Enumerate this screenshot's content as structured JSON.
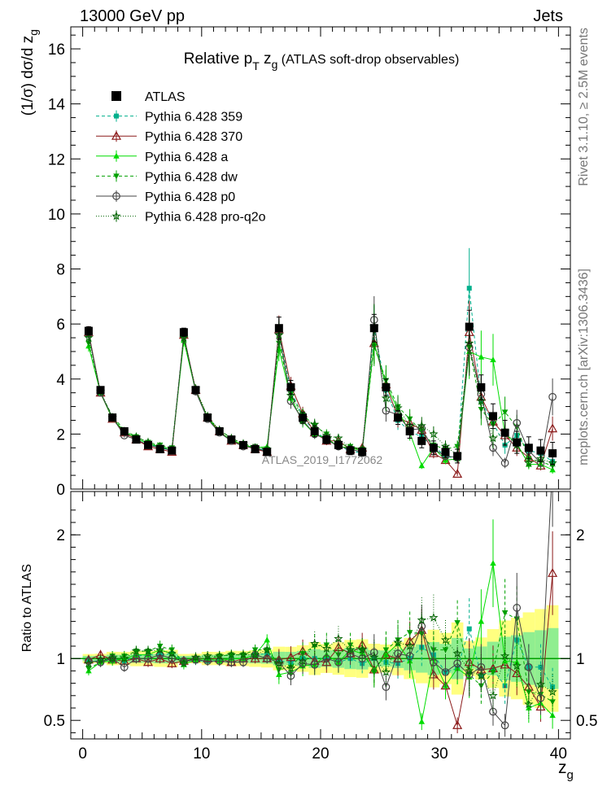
{
  "header": {
    "left": "13000 GeV pp",
    "right": "Jets"
  },
  "side": {
    "top": "Rivet 3.1.10, ≥ 2.5M events",
    "bottom": "mcplots.cern.ch [arXiv:1306.3436]"
  },
  "chart_data": {
    "type": "scatter",
    "title_parts": [
      "Relative p",
      "T",
      " z",
      "g",
      " (ATLAS soft-drop observables)"
    ],
    "ylabel_parts": [
      "(1/σ) dσ/d z",
      "g"
    ],
    "ratio_ylabel": "Ratio to ATLAS",
    "xlabel_parts": [
      "z",
      "g"
    ],
    "watermark": "ATLAS_2019_I1772062",
    "xlim": [
      -1,
      41
    ],
    "ylim_main": [
      0,
      16.8
    ],
    "ylim_ratio": [
      0.35,
      2.35
    ],
    "x_ticks": [
      0,
      10,
      20,
      30,
      40
    ],
    "y_ticks_main": [
      0,
      2,
      4,
      6,
      8,
      10,
      12,
      14,
      16
    ],
    "y_ticks_ratio": [
      0.5,
      1,
      2
    ],
    "legend_position": "top-left",
    "colors": {
      "band_stat": "#90ee90",
      "band_total": "#ffff80",
      "c359": "#00b08c",
      "c370": "#8b1a1a",
      "ca": "#00dd00",
      "cdw": "#00a000",
      "cp0": "#444444",
      "cq2o": "#006400"
    },
    "x": [
      0.5,
      1.5,
      2.5,
      3.5,
      4.5,
      5.5,
      6.5,
      7.5,
      8.5,
      9.5,
      10.5,
      11.5,
      12.5,
      13.5,
      14.5,
      15.5,
      16.5,
      17.5,
      18.5,
      19.5,
      20.5,
      21.5,
      22.5,
      23.5,
      24.5,
      25.5,
      26.5,
      27.5,
      28.5,
      29.5,
      30.5,
      31.5,
      32.5,
      33.5,
      34.5,
      35.5,
      36.5,
      37.5,
      38.5,
      39.5
    ],
    "series": [
      {
        "name": "ATLAS",
        "marker": "square-filled",
        "color": "#000000",
        "values": [
          5.75,
          3.6,
          2.6,
          2.1,
          1.8,
          1.6,
          1.45,
          1.4,
          5.7,
          3.6,
          2.6,
          2.1,
          1.8,
          1.6,
          1.45,
          1.35,
          5.85,
          3.7,
          2.6,
          2.1,
          1.8,
          1.6,
          1.4,
          1.35,
          5.85,
          3.7,
          2.6,
          2.1,
          1.75,
          1.5,
          1.35,
          1.2,
          5.9,
          3.7,
          2.65,
          2.05,
          1.7,
          1.5,
          1.4,
          1.3
        ],
        "errors": [
          0.15,
          0.1,
          0.1,
          0.08,
          0.08,
          0.07,
          0.07,
          0.07,
          0.15,
          0.1,
          0.1,
          0.08,
          0.08,
          0.07,
          0.07,
          0.07,
          0.4,
          0.25,
          0.2,
          0.2,
          0.15,
          0.15,
          0.15,
          0.15,
          0.5,
          0.3,
          0.25,
          0.25,
          0.25,
          0.25,
          0.2,
          0.25,
          0.6,
          0.45,
          0.45,
          0.45,
          0.4,
          0.4,
          0.4,
          0.4
        ]
      },
      {
        "name": "Pythia 6.428 359",
        "marker": "square-small",
        "color": "#00b08c",
        "dash": "4,3",
        "values": [
          5.6,
          3.5,
          2.6,
          2.05,
          1.85,
          1.65,
          1.5,
          1.45,
          5.6,
          3.55,
          2.55,
          2.05,
          1.8,
          1.6,
          1.5,
          1.4,
          5.7,
          3.6,
          2.6,
          2.1,
          1.8,
          1.55,
          1.4,
          1.3,
          5.85,
          3.6,
          2.5,
          2.1,
          1.9,
          1.55,
          1.2,
          1.1,
          7.3,
          3.2,
          2.4,
          1.6,
          1.95,
          1.4,
          1.3,
          1.0
        ],
        "ratio": [
          0.98,
          0.98,
          1.0,
          0.98,
          1.02,
          1.03,
          1.03,
          1.04,
          0.98,
          0.98,
          0.98,
          0.98,
          1.0,
          1.0,
          1.03,
          1.04,
          0.98,
          0.97,
          1.0,
          1.0,
          1.0,
          0.97,
          1.0,
          0.96,
          1.0,
          0.97,
          0.96,
          1.0,
          1.09,
          1.03,
          0.89,
          0.92,
          1.24,
          0.86,
          0.91,
          0.78,
          1.15,
          0.93,
          0.93,
          0.77
        ]
      },
      {
        "name": "Pythia 6.428 370",
        "marker": "triangle-up-open",
        "color": "#8b1a1a",
        "dash": "",
        "values": [
          5.7,
          3.5,
          2.55,
          2.05,
          1.8,
          1.55,
          1.45,
          1.35,
          5.6,
          3.6,
          2.6,
          2.1,
          1.75,
          1.6,
          1.45,
          1.35,
          5.8,
          3.75,
          2.75,
          2.05,
          1.75,
          1.75,
          1.45,
          1.5,
          5.3,
          3.8,
          2.6,
          2.4,
          2.15,
          1.3,
          1.05,
          0.55,
          5.7,
          3.35,
          2.45,
          1.95,
          1.5,
          1.15,
          0.85,
          2.2
        ],
        "ratio": [
          0.99,
          1.03,
          0.99,
          0.98,
          1.0,
          0.97,
          1.0,
          0.96,
          0.98,
          1.0,
          1.0,
          1.0,
          0.97,
          1.0,
          1.0,
          1.0,
          0.99,
          1.01,
          1.06,
          0.98,
          0.97,
          1.09,
          1.04,
          1.11,
          0.91,
          1.03,
          1.0,
          1.14,
          1.23,
          0.87,
          0.78,
          0.46,
          0.97,
          0.91,
          0.92,
          0.95,
          0.88,
          0.77,
          0.61,
          1.69
        ]
      },
      {
        "name": "Pythia 6.428 a",
        "marker": "triangle-up-filled",
        "color": "#00dd00",
        "dash": "",
        "values": [
          5.2,
          3.5,
          2.55,
          2.1,
          1.85,
          1.65,
          1.55,
          1.45,
          5.4,
          3.55,
          2.6,
          2.05,
          1.8,
          1.6,
          1.5,
          1.55,
          5.1,
          3.3,
          2.45,
          2.0,
          1.85,
          1.55,
          1.5,
          1.4,
          5.3,
          3.8,
          2.9,
          2.05,
          0.85,
          1.5,
          1.05,
          1.1,
          5.0,
          4.8,
          4.7,
          2.0,
          1.65,
          0.9,
          0.9,
          0.7
        ],
        "ratio": [
          0.9,
          0.97,
          0.98,
          1.0,
          1.03,
          1.03,
          1.07,
          1.04,
          0.95,
          0.99,
          1.0,
          0.98,
          1.0,
          1.0,
          1.03,
          1.15,
          0.87,
          0.89,
          0.94,
          0.95,
          1.03,
          0.97,
          1.07,
          1.04,
          0.91,
          1.03,
          1.12,
          0.98,
          0.49,
          1.0,
          0.78,
          0.92,
          0.85,
          1.3,
          1.77,
          0.98,
          0.97,
          0.6,
          0.64,
          0.54
        ]
      },
      {
        "name": "Pythia 6.428 dw",
        "marker": "triangle-down-filled",
        "color": "#00a000",
        "dash": "4,3",
        "values": [
          5.3,
          3.5,
          2.65,
          2.15,
          1.9,
          1.7,
          1.6,
          1.5,
          5.5,
          3.6,
          2.6,
          2.15,
          1.85,
          1.65,
          1.55,
          1.45,
          5.3,
          3.45,
          2.7,
          2.3,
          2.0,
          1.65,
          1.55,
          1.45,
          5.2,
          3.95,
          3.0,
          2.55,
          2.1,
          1.6,
          1.45,
          1.55,
          5.15,
          2.9,
          2.35,
          2.8,
          2.25,
          1.1,
          1.0,
          0.85
        ],
        "ratio": [
          0.92,
          0.97,
          1.02,
          1.02,
          1.06,
          1.06,
          1.1,
          1.07,
          0.97,
          1.0,
          1.0,
          1.02,
          1.03,
          1.03,
          1.07,
          1.07,
          0.91,
          0.93,
          1.04,
          1.1,
          1.11,
          1.03,
          1.11,
          1.07,
          0.89,
          1.07,
          1.15,
          1.21,
          1.2,
          1.07,
          1.07,
          1.29,
          0.87,
          0.78,
          0.89,
          1.37,
          1.32,
          0.73,
          0.71,
          0.65
        ]
      },
      {
        "name": "Pythia 6.428 p0",
        "marker": "circle-open",
        "color": "#444444",
        "dash": "",
        "values": [
          5.65,
          3.5,
          2.6,
          1.95,
          1.8,
          1.6,
          1.5,
          1.4,
          5.6,
          3.55,
          2.55,
          2.05,
          1.75,
          1.55,
          1.5,
          1.35,
          5.7,
          3.2,
          2.5,
          2.0,
          1.8,
          1.55,
          1.45,
          1.35,
          6.15,
          2.85,
          2.7,
          2.15,
          2.2,
          1.45,
          1.2,
          1.15,
          5.15,
          3.45,
          1.5,
          0.95,
          2.4,
          1.4,
          0.95,
          3.35
        ],
        "ratio": [
          0.98,
          0.97,
          1.0,
          0.93,
          1.0,
          1.0,
          1.03,
          1.0,
          0.98,
          0.99,
          0.98,
          0.98,
          0.97,
          0.97,
          1.03,
          1.0,
          0.97,
          0.86,
          0.96,
          0.95,
          1.0,
          0.97,
          1.04,
          1.0,
          1.05,
          0.77,
          1.04,
          1.02,
          1.26,
          0.97,
          0.89,
          0.96,
          0.87,
          0.93,
          0.57,
          0.46,
          1.41,
          0.93,
          0.68,
          2.58
        ]
      },
      {
        "name": "Pythia 6.428 pro-q2o",
        "marker": "star-open",
        "color": "#006400",
        "dash": "1,2",
        "values": [
          5.5,
          3.55,
          2.6,
          2.1,
          1.9,
          1.7,
          1.55,
          1.45,
          5.5,
          3.65,
          2.65,
          2.15,
          1.85,
          1.65,
          1.5,
          1.45,
          5.6,
          3.4,
          2.55,
          2.35,
          1.95,
          1.85,
          1.5,
          1.45,
          5.9,
          3.3,
          2.95,
          2.3,
          2.3,
          2.0,
          1.55,
          1.25,
          5.3,
          3.2,
          1.85,
          2.1,
          1.6,
          0.95,
          1.1,
          0.95
        ],
        "ratio": [
          0.96,
          0.99,
          1.0,
          1.0,
          1.06,
          1.06,
          1.07,
          1.04,
          0.96,
          1.01,
          1.02,
          1.02,
          1.03,
          1.03,
          1.03,
          1.07,
          0.96,
          0.92,
          0.98,
          1.12,
          1.08,
          1.16,
          1.07,
          1.07,
          1.01,
          0.89,
          1.13,
          1.1,
          1.31,
          1.33,
          1.15,
          1.04,
          0.9,
          0.86,
          0.7,
          1.02,
          0.94,
          0.63,
          0.79,
          0.73
        ]
      }
    ]
  }
}
